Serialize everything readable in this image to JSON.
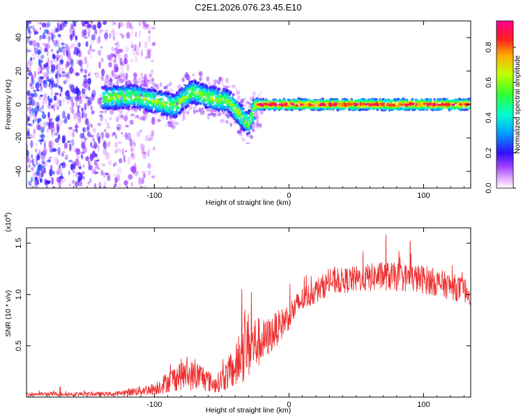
{
  "title": "C2E1.2026.076.23.45.E10",
  "colormap": [
    "#ffffff",
    "#e8b8ff",
    "#9b30ff",
    "#3000ff",
    "#00c8ff",
    "#00ff60",
    "#c8ff00",
    "#ff2020",
    "#ff0080"
  ],
  "trace_color": "#ee3030",
  "chart_data": [
    {
      "type": "heatmap",
      "xlabel": "Height of straight line (km)",
      "ylabel": "Frequency (Hz)",
      "xlim": [
        -195,
        135
      ],
      "ylim": [
        -50,
        50
      ],
      "x_ticks": [
        -100,
        0,
        100
      ],
      "x_tick_labels": [
        "-100",
        "0",
        "100"
      ],
      "y_ticks": [
        -40,
        -20,
        0,
        20,
        40
      ],
      "y_tick_labels": [
        "-40",
        "-20",
        "0",
        "20",
        "40"
      ],
      "ridge": [
        {
          "x": -135,
          "f": 4
        },
        {
          "x": -115,
          "f": 5
        },
        {
          "x": -100,
          "f": 2
        },
        {
          "x": -85,
          "f": -1
        },
        {
          "x": -72,
          "f": 8
        },
        {
          "x": -60,
          "f": 4
        },
        {
          "x": -45,
          "f": 2
        },
        {
          "x": -30,
          "f": -12
        },
        {
          "x": -25,
          "f": 0
        },
        {
          "x": 0,
          "f": 0
        },
        {
          "x": 50,
          "f": 0
        },
        {
          "x": 100,
          "f": 0
        },
        {
          "x": 135,
          "f": 0
        }
      ],
      "colorbar": {
        "label": "Normalized spectral amplitude",
        "range": [
          0,
          0.95
        ],
        "ticks": [
          0.0,
          0.2,
          0.4,
          0.6,
          0.8
        ],
        "tick_labels": [
          "0.0",
          "0.2",
          "0.4",
          "0.6",
          "0.8"
        ]
      }
    },
    {
      "type": "line",
      "xlabel": "Height of straight line (km)",
      "ylabel": "SNR (10 * v/v)",
      "y_multiplier": "(x10",
      "y_multiplier_exp": "4",
      "y_multiplier_close": ")",
      "xlim": [
        -195,
        135
      ],
      "ylim": [
        0,
        1.65
      ],
      "x_ticks": [
        -100,
        0,
        100
      ],
      "x_tick_labels": [
        "-100",
        "0",
        "100"
      ],
      "y_ticks": [
        0.5,
        1.0,
        1.5
      ],
      "y_tick_labels": [
        "0.5",
        "1.0",
        "1.5"
      ],
      "envelope": [
        {
          "x": -195,
          "mean": 0.03,
          "spread": 0.02
        },
        {
          "x": -130,
          "mean": 0.03,
          "spread": 0.02
        },
        {
          "x": -100,
          "mean": 0.08,
          "spread": 0.06
        },
        {
          "x": -80,
          "mean": 0.22,
          "spread": 0.15
        },
        {
          "x": -65,
          "mean": 0.2,
          "spread": 0.14
        },
        {
          "x": -55,
          "mean": 0.12,
          "spread": 0.08
        },
        {
          "x": -40,
          "mean": 0.28,
          "spread": 0.2
        },
        {
          "x": -32,
          "mean": 0.5,
          "spread": 0.35
        },
        {
          "x": -18,
          "mean": 0.55,
          "spread": 0.2
        },
        {
          "x": -5,
          "mean": 0.72,
          "spread": 0.15
        },
        {
          "x": 10,
          "mean": 0.95,
          "spread": 0.12
        },
        {
          "x": 30,
          "mean": 1.12,
          "spread": 0.12
        },
        {
          "x": 70,
          "mean": 1.18,
          "spread": 0.14
        },
        {
          "x": 100,
          "mean": 1.15,
          "spread": 0.14
        },
        {
          "x": 120,
          "mean": 1.08,
          "spread": 0.13
        },
        {
          "x": 135,
          "mean": 1.02,
          "spread": 0.12
        }
      ],
      "peak_points": [
        {
          "x": 72,
          "y": 1.58
        },
        {
          "x": 90,
          "y": 1.52
        },
        {
          "x": 55,
          "y": 1.42
        },
        {
          "x": -35,
          "y": 1.05
        },
        {
          "x": -28,
          "y": 1.02
        },
        {
          "x": -170,
          "y": 0.1
        }
      ]
    }
  ]
}
